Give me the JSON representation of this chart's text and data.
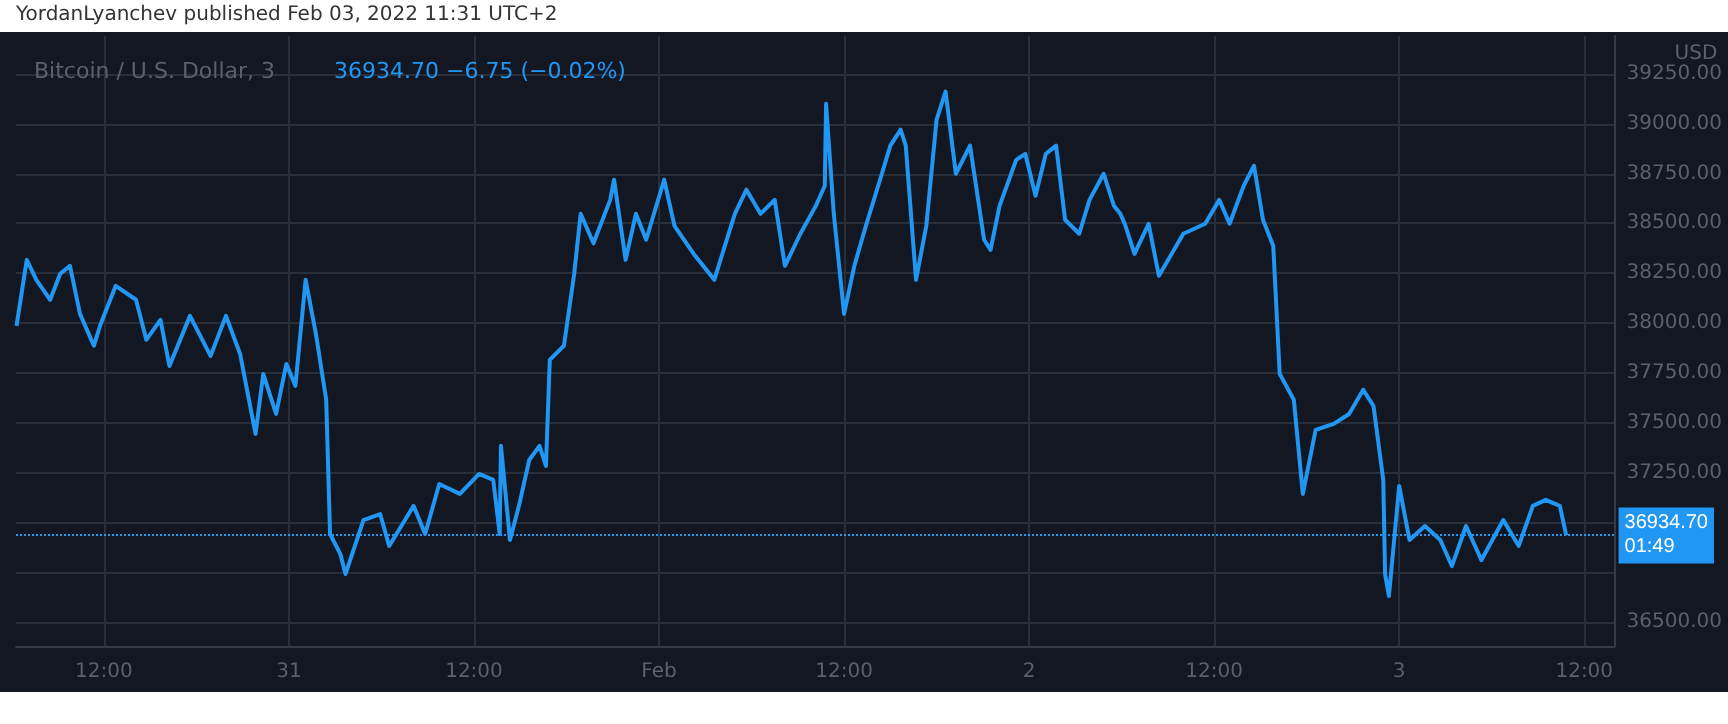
{
  "chart_data": {
    "type": "line",
    "title": "Bitcoin / U.S. Dollar, 3",
    "subtitle": "36934.70 −6.75 (−0.02%)",
    "ylabel": "USD",
    "annotations": [
      "YordanLyanchev published Feb 03, 2022 11:31 UTC+2",
      "01:49"
    ],
    "x": [
      "2022-01-30T06:20",
      "2022-01-30T07:00",
      "2022-01-30T07:37",
      "2022-01-30T08:31",
      "2022-01-30T09:10",
      "2022-01-30T09:48",
      "2022-01-30T10:27",
      "2022-01-30T11:21",
      "2022-01-30T11:45",
      "2022-01-30T12:46",
      "2022-01-30T14:05",
      "2022-01-30T14:45",
      "2022-01-30T15:40",
      "2022-01-30T16:15",
      "2022-01-30T17:35",
      "2022-01-30T18:55",
      "2022-01-30T19:55",
      "2022-01-30T20:50",
      "2022-01-30T21:50",
      "2022-01-30T22:20",
      "2022-01-30T23:10",
      "2022-01-30T23:50",
      "2022-01-31T00:25",
      "2022-01-31T01:05",
      "2022-01-31T01:45",
      "2022-01-31T02:25",
      "2022-01-31T02:40",
      "2022-01-31T03:20",
      "2022-01-31T03:40",
      "2022-01-31T04:50",
      "2022-01-31T05:55",
      "2022-01-31T06:30",
      "2022-01-31T08:05",
      "2022-01-31T08:50",
      "2022-01-31T09:45",
      "2022-01-31T11:05",
      "2022-01-31T12:20",
      "2022-01-31T13:15",
      "2022-01-31T13:40",
      "2022-01-31T13:45",
      "2022-01-31T14:20",
      "2022-01-31T14:55",
      "2022-01-31T15:35",
      "2022-01-31T16:15",
      "2022-01-31T16:40",
      "2022-01-31T16:55",
      "2022-01-31T17:50",
      "2022-01-31T18:30",
      "2022-01-31T18:55",
      "2022-01-31T19:45",
      "2022-01-31T20:50",
      "2022-01-31T21:05",
      "2022-01-31T21:50",
      "2022-01-31T22:30",
      "2022-01-31T23:10",
      "2022-02-01T00:20",
      "2022-02-01T01:00",
      "2022-02-01T02:15",
      "2022-02-01T03:35",
      "2022-02-01T04:55",
      "2022-02-01T05:40",
      "2022-02-01T06:35",
      "2022-02-01T07:30",
      "2022-02-01T08:10",
      "2022-02-01T09:10",
      "2022-02-01T10:10",
      "2022-02-01T10:45",
      "2022-02-01T10:50",
      "2022-02-01T11:20",
      "2022-02-01T12:00",
      "2022-02-01T12:40",
      "2022-02-01T13:25",
      "2022-02-01T14:20",
      "2022-02-01T15:00",
      "2022-02-01T15:40",
      "2022-02-01T16:00",
      "2022-02-01T16:40",
      "2022-02-01T17:20",
      "2022-02-01T18:00",
      "2022-02-01T18:35",
      "2022-02-01T19:15",
      "2022-02-01T20:10",
      "2022-02-01T21:05",
      "2022-02-01T21:30",
      "2022-02-01T22:05",
      "2022-02-01T23:10",
      "2022-02-01T23:45",
      "2022-02-02T00:25",
      "2022-02-02T01:05",
      "2022-02-02T01:45",
      "2022-02-02T02:20",
      "2022-02-02T03:15",
      "2022-02-02T03:55",
      "2022-02-02T04:50",
      "2022-02-02T05:30",
      "2022-02-02T05:55",
      "2022-02-02T06:15",
      "2022-02-02T06:50",
      "2022-02-02T07:45",
      "2022-02-02T08:25",
      "2022-02-02T10:00",
      "2022-02-02T11:25",
      "2022-02-02T12:20",
      "2022-02-02T13:00",
      "2022-02-02T13:55",
      "2022-02-02T14:35",
      "2022-02-02T15:10",
      "2022-02-02T15:50",
      "2022-02-02T16:15",
      "2022-02-02T17:10",
      "2022-02-02T17:45",
      "2022-02-02T18:35",
      "2022-02-02T19:45",
      "2022-02-02T20:45",
      "2022-02-02T21:40",
      "2022-02-02T22:20",
      "2022-02-02T22:58",
      "2022-02-02T23:05",
      "2022-02-02T23:20",
      "2022-02-03T00:00",
      "2022-02-03T00:40",
      "2022-02-03T01:40",
      "2022-02-03T02:40",
      "2022-02-03T03:25",
      "2022-02-03T04:20",
      "2022-02-03T05:20",
      "2022-02-03T06:45",
      "2022-02-03T07:45",
      "2022-02-03T08:40",
      "2022-02-03T09:30",
      "2022-02-03T10:25",
      "2022-02-03T10:50"
    ],
    "series": [
      {
        "color": "#2196f3",
        "values": [
          37986,
          38317,
          38217,
          38117,
          38247,
          38287,
          38046,
          37886,
          37986,
          38187,
          38117,
          37916,
          38016,
          37785,
          38036,
          37835,
          38036,
          37845,
          37444,
          37745,
          37544,
          37795,
          37685,
          38217,
          37946,
          37615,
          36942,
          36841,
          36741,
          37012,
          37042,
          36882,
          37083,
          36942,
          37193,
          37143,
          37243,
          37213,
          36942,
          37384,
          36912,
          37083,
          37313,
          37384,
          37283,
          37815,
          37886,
          38247,
          38548,
          38400,
          38618,
          38719,
          38317,
          38548,
          38418,
          38719,
          38488,
          38347,
          38217,
          38548,
          38669,
          38548,
          38618,
          38287,
          38448,
          38588,
          38689,
          39100,
          38548,
          38046,
          38287,
          38488,
          38719,
          38890,
          38970,
          38890,
          38217,
          38488,
          39020,
          39161,
          38749,
          38890,
          38418,
          38367,
          38588,
          38819,
          38849,
          38639,
          38849,
          38890,
          38518,
          38448,
          38618,
          38749,
          38588,
          38548,
          38488,
          38347,
          38498,
          38237,
          38448,
          38498,
          38618,
          38498,
          38689,
          38789,
          38518,
          38387,
          37745,
          37615,
          37143,
          37464,
          37494,
          37544,
          37665,
          37584,
          37213,
          36741,
          36631,
          37183,
          36912,
          36982,
          36912,
          36781,
          36982,
          36811,
          37012,
          36882,
          37083,
          37113,
          37083,
          36934.7
        ]
      }
    ],
    "xlim": [
      "2022-01-30T06:18",
      "2022-02-03T13:58"
    ],
    "xticks": [
      {
        "value": "2022-01-30T12:00",
        "label": "12:00"
      },
      {
        "value": "2022-01-31T00:00",
        "label": "31"
      },
      {
        "value": "2022-01-31T12:00",
        "label": "12:00"
      },
      {
        "value": "2022-02-01T00:00",
        "label": "Feb"
      },
      {
        "value": "2022-02-01T12:00",
        "label": "12:00"
      },
      {
        "value": "2022-02-02T00:00",
        "label": "2"
      },
      {
        "value": "2022-02-02T12:00",
        "label": "12:00"
      },
      {
        "value": "2022-02-03T00:00",
        "label": "3"
      },
      {
        "value": "2022-02-03T12:00",
        "label": "12:00"
      }
    ],
    "ylim": [
      36380,
      39440
    ],
    "yticks": [
      {
        "value": 36500,
        "label": "36500.00"
      },
      {
        "value": 36750,
        "label": null
      },
      {
        "value": 37000,
        "label": null
      },
      {
        "value": 37250,
        "label": "37250.00"
      },
      {
        "value": 37500,
        "label": "37500.00"
      },
      {
        "value": 37750,
        "label": "37750.00"
      },
      {
        "value": 38000,
        "label": "38000.00"
      },
      {
        "value": 38250,
        "label": "38250.00"
      },
      {
        "value": 38500,
        "label": "38500.00"
      },
      {
        "value": 38750,
        "label": "38750.00"
      },
      {
        "value": 39000,
        "label": "39000.00"
      },
      {
        "value": 39250,
        "label": "39250.00"
      }
    ],
    "ref_lines": [
      {
        "axis": "y",
        "value": 36934.7,
        "label": "36934.70",
        "color": "#2196f3",
        "line_style": "dotted"
      }
    ],
    "grid": true
  }
}
